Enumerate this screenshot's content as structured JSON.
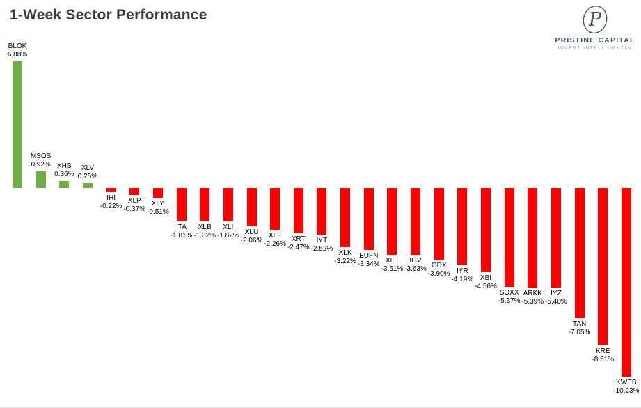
{
  "header": {
    "title": "1-Week Sector Performance"
  },
  "logo": {
    "monogram": "P",
    "name": "PRISTINE CAPITAL",
    "tagline": "INVEST INTELLIGENTLY",
    "color": "#44546a"
  },
  "chart_data": {
    "type": "bar",
    "title": "1-Week Sector Performance",
    "xlabel": "",
    "ylabel": "",
    "grid": false,
    "legend": "none",
    "positive_color": "#70ad47",
    "negative_color": "#ff0000",
    "ylim": [
      -10.23,
      6.88
    ],
    "categories": [
      "BLOK",
      "MSOS",
      "XHB",
      "XLV",
      "IHI",
      "XLP",
      "XLY",
      "ITA",
      "XLB",
      "XLI",
      "XLU",
      "XLF",
      "XRT",
      "IYT",
      "XLK",
      "EUFN",
      "XLE",
      "IGV",
      "GDX",
      "IYR",
      "XBI",
      "SOXX",
      "ARKK",
      "IYZ",
      "TAN",
      "KRE",
      "KWEB"
    ],
    "values": [
      6.88,
      0.92,
      0.36,
      0.25,
      -0.22,
      -0.37,
      -0.51,
      -1.81,
      -1.82,
      -1.82,
      -2.06,
      -2.26,
      -2.47,
      -2.52,
      -3.22,
      -3.34,
      -3.61,
      -3.63,
      -3.9,
      -4.19,
      -4.56,
      -5.37,
      -5.39,
      -5.4,
      -7.05,
      -8.51,
      -10.23
    ],
    "value_labels": [
      "6.88%",
      "0.92%",
      "0.36%",
      "0.25%",
      "-0.22%",
      "-0.37%",
      "-0.51%",
      "-1.81%",
      "-1.82%",
      "-1.82%",
      "-2.06%",
      "-2.26%",
      "-2.47%",
      "-2.52%",
      "-3.22%",
      "-3.34%",
      "-3.61%",
      "-3.63%",
      "-3.90%",
      "-4.19%",
      "-4.56%",
      "-5.37%",
      "-5.39%",
      "-5.40%",
      "-7.05%",
      "-8.51%",
      "-10.23%"
    ]
  }
}
